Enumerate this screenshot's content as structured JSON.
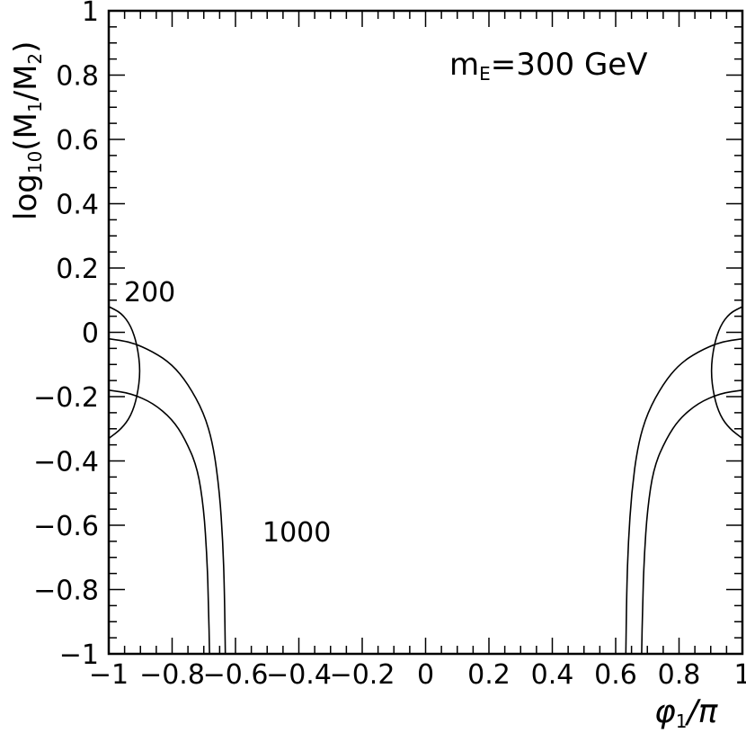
{
  "chart_data": {
    "type": "contour",
    "xlim": [
      -1,
      1
    ],
    "ylim": [
      -1,
      1
    ],
    "x_ticks": [
      -1,
      -0.8,
      -0.6,
      -0.4,
      -0.2,
      0,
      0.2,
      0.4,
      0.6,
      0.8,
      1
    ],
    "x_tick_labels": [
      "−1",
      "−0.8",
      "−0.6",
      "−0.4",
      "−0.2",
      "0",
      "0.2",
      "0.4",
      "0.6",
      "0.8",
      "1"
    ],
    "y_ticks": [
      -1,
      -0.8,
      -0.6,
      -0.4,
      -0.2,
      0,
      0.2,
      0.4,
      0.6,
      0.8,
      1
    ],
    "y_tick_labels": [
      "−1",
      "−0.8",
      "−0.6",
      "−0.4",
      "−0.2",
      "0",
      "0.2",
      "0.4",
      "0.6",
      "0.8",
      "1"
    ],
    "xlabel": {
      "base": "φ",
      "sub": "1",
      "tail": "/π"
    },
    "ylabel": {
      "pre": "log",
      "sub1": "10",
      "mid": "(M",
      "sub2": "1",
      "mid2": "/M",
      "sub3": "2",
      "post": ")"
    },
    "annotation": {
      "main": "m",
      "sub": "E",
      "tail": "=300 GeV"
    },
    "contour_labels": [
      "200",
      "1000"
    ],
    "contours": [
      {
        "name": "200-left",
        "points": [
          [
            -1.0,
            0.08
          ],
          [
            -0.96,
            0.06
          ],
          [
            -0.93,
            0.02
          ],
          [
            -0.91,
            -0.04
          ],
          [
            -0.9,
            -0.12
          ],
          [
            -0.91,
            -0.2
          ],
          [
            -0.93,
            -0.26
          ],
          [
            -0.96,
            -0.3
          ],
          [
            -1.0,
            -0.33
          ]
        ]
      },
      {
        "name": "200-right",
        "points": [
          [
            1.0,
            0.08
          ],
          [
            0.96,
            0.06
          ],
          [
            0.93,
            0.02
          ],
          [
            0.91,
            -0.04
          ],
          [
            0.9,
            -0.12
          ],
          [
            0.91,
            -0.2
          ],
          [
            0.93,
            -0.26
          ],
          [
            0.96,
            -0.3
          ],
          [
            1.0,
            -0.33
          ]
        ]
      },
      {
        "name": "1000-left-outer",
        "points": [
          [
            -1.0,
            -0.02
          ],
          [
            -0.93,
            -0.03
          ],
          [
            -0.86,
            -0.06
          ],
          [
            -0.8,
            -0.1
          ],
          [
            -0.75,
            -0.16
          ],
          [
            -0.7,
            -0.25
          ],
          [
            -0.67,
            -0.35
          ],
          [
            -0.65,
            -0.5
          ],
          [
            -0.64,
            -0.65
          ],
          [
            -0.635,
            -0.8
          ],
          [
            -0.632,
            -1.0
          ]
        ]
      },
      {
        "name": "1000-left-inner",
        "points": [
          [
            -1.0,
            -0.18
          ],
          [
            -0.93,
            -0.19
          ],
          [
            -0.86,
            -0.22
          ],
          [
            -0.8,
            -0.27
          ],
          [
            -0.76,
            -0.33
          ],
          [
            -0.72,
            -0.42
          ],
          [
            -0.7,
            -0.55
          ],
          [
            -0.69,
            -0.7
          ],
          [
            -0.685,
            -0.85
          ],
          [
            -0.682,
            -1.0
          ]
        ]
      },
      {
        "name": "1000-right-outer",
        "points": [
          [
            1.0,
            -0.02
          ],
          [
            0.93,
            -0.03
          ],
          [
            0.86,
            -0.06
          ],
          [
            0.8,
            -0.1
          ],
          [
            0.75,
            -0.16
          ],
          [
            0.7,
            -0.25
          ],
          [
            0.67,
            -0.35
          ],
          [
            0.65,
            -0.5
          ],
          [
            0.64,
            -0.65
          ],
          [
            0.635,
            -0.8
          ],
          [
            0.632,
            -1.0
          ]
        ]
      },
      {
        "name": "1000-right-inner",
        "points": [
          [
            1.0,
            -0.18
          ],
          [
            0.93,
            -0.19
          ],
          [
            0.86,
            -0.22
          ],
          [
            0.8,
            -0.27
          ],
          [
            0.76,
            -0.33
          ],
          [
            0.72,
            -0.42
          ],
          [
            0.7,
            -0.55
          ],
          [
            0.69,
            -0.7
          ],
          [
            0.685,
            -0.85
          ],
          [
            0.682,
            -1.0
          ]
        ]
      }
    ],
    "grid": false,
    "legend": "none"
  }
}
